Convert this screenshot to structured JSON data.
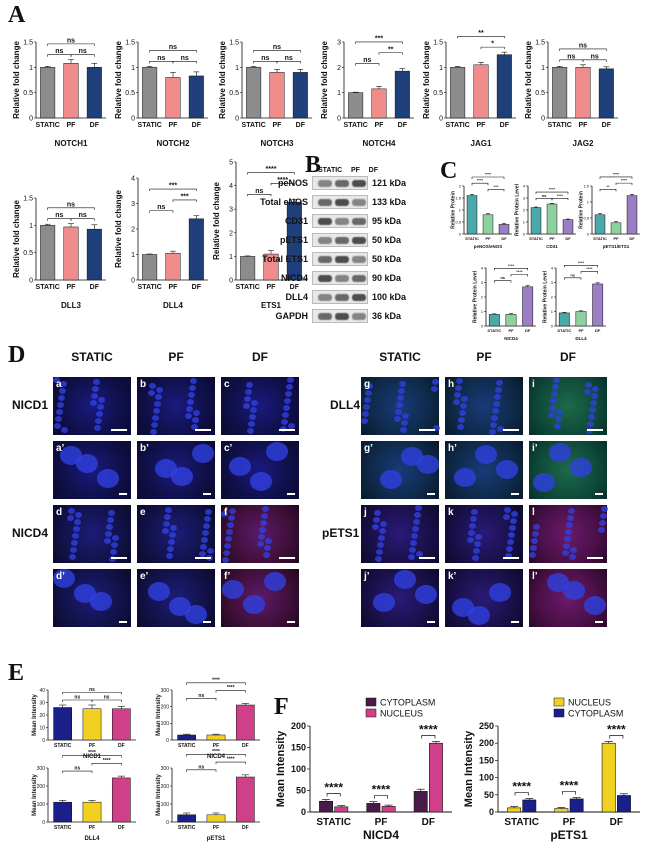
{
  "panels": {
    "A": "A",
    "B": "B",
    "C": "C",
    "D": "D",
    "E": "E",
    "F": "F"
  },
  "colors": {
    "static": "#8c8c8c",
    "pf": "#f08c8c",
    "df": "#1f3f7a",
    "purple": "#9b7fc4",
    "green": "#8fd19e",
    "teal": "#4aa8a8",
    "navy": "#1b1f8a",
    "gold": "#f0d020",
    "magenta": "#d0408a",
    "dark_purple": "#4a1a4a"
  },
  "chart_data": [
    {
      "id": "notch1",
      "type": "bar",
      "categories": [
        "STATIC",
        "PF",
        "DF"
      ],
      "values": [
        1.0,
        1.08,
        1.0
      ],
      "errors": [
        0.02,
        0.07,
        0.08
      ],
      "xlabel": "NOTCH1",
      "ylabel": "Relative fold change",
      "ylim": [
        0,
        1.5
      ],
      "yticks": [
        0,
        0.5,
        1,
        1.5
      ],
      "sig": [
        {
          "a": 0,
          "b": 1,
          "label": "ns",
          "level": 0
        },
        {
          "a": 1,
          "b": 2,
          "label": "ns",
          "level": 0
        },
        {
          "a": 0,
          "b": 2,
          "label": "ns",
          "level": 1
        }
      ]
    },
    {
      "id": "notch2",
      "type": "bar",
      "categories": [
        "STATIC",
        "PF",
        "DF"
      ],
      "values": [
        1.0,
        0.8,
        0.83
      ],
      "errors": [
        0.02,
        0.1,
        0.08
      ],
      "xlabel": "NOTCH2",
      "ylabel": "Relative fold change",
      "ylim": [
        0,
        1.5
      ],
      "yticks": [
        0,
        0.5,
        1,
        1.5
      ],
      "sig": [
        {
          "a": 0,
          "b": 1,
          "label": "ns",
          "level": 0
        },
        {
          "a": 1,
          "b": 2,
          "label": "ns",
          "level": 0
        },
        {
          "a": 0,
          "b": 2,
          "label": "ns",
          "level": 1
        }
      ]
    },
    {
      "id": "notch3",
      "type": "bar",
      "categories": [
        "STATIC",
        "PF",
        "DF"
      ],
      "values": [
        1.0,
        0.9,
        0.9
      ],
      "errors": [
        0.02,
        0.06,
        0.06
      ],
      "xlabel": "NOTCH3",
      "ylabel": "Relative fold change",
      "ylim": [
        0,
        1.5
      ],
      "yticks": [
        0,
        0.5,
        1,
        1.5
      ],
      "sig": [
        {
          "a": 0,
          "b": 1,
          "label": "ns",
          "level": 0
        },
        {
          "a": 1,
          "b": 2,
          "label": "ns",
          "level": 0
        },
        {
          "a": 0,
          "b": 2,
          "label": "ns",
          "level": 1
        }
      ]
    },
    {
      "id": "notch4",
      "type": "bar",
      "categories": [
        "STATIC",
        "PF",
        "DF"
      ],
      "values": [
        1.0,
        1.15,
        1.85
      ],
      "errors": [
        0.02,
        0.1,
        0.1
      ],
      "xlabel": "NOTCH4",
      "ylabel": "Relative fold change",
      "ylim": [
        0,
        3
      ],
      "yticks": [
        0,
        1,
        2,
        3
      ],
      "sig": [
        {
          "a": 0,
          "b": 1,
          "label": "ns",
          "level": 0
        },
        {
          "a": 1,
          "b": 2,
          "label": "**",
          "level": 1
        },
        {
          "a": 0,
          "b": 2,
          "label": "***",
          "level": 2
        }
      ]
    },
    {
      "id": "jag1",
      "type": "bar",
      "categories": [
        "STATIC",
        "PF",
        "DF"
      ],
      "values": [
        1.0,
        1.05,
        1.25
      ],
      "errors": [
        0.02,
        0.05,
        0.05
      ],
      "xlabel": "JAG1",
      "ylabel": "Relative fold change",
      "ylim": [
        0,
        1.5
      ],
      "yticks": [
        0,
        0.5,
        1,
        1.5
      ],
      "sig": [
        {
          "a": 1,
          "b": 2,
          "label": "*",
          "level": 0
        },
        {
          "a": 0,
          "b": 2,
          "label": "**",
          "level": 1
        }
      ]
    },
    {
      "id": "jag2",
      "type": "bar",
      "categories": [
        "STATIC",
        "PF",
        "DF"
      ],
      "values": [
        1.0,
        1.0,
        0.97
      ],
      "errors": [
        0.02,
        0.05,
        0.04
      ],
      "xlabel": "JAG2",
      "ylabel": "Relative fold change",
      "ylim": [
        0,
        1.5
      ],
      "yticks": [
        0,
        0.5,
        1,
        1.5
      ],
      "sig": [
        {
          "a": 0,
          "b": 1,
          "label": "ns",
          "level": 0
        },
        {
          "a": 1,
          "b": 2,
          "label": "ns",
          "level": 0
        },
        {
          "a": 0,
          "b": 2,
          "label": "ns",
          "level": 1
        }
      ]
    },
    {
      "id": "dll3",
      "type": "bar",
      "categories": [
        "STATIC",
        "PF",
        "DF"
      ],
      "values": [
        1.0,
        0.97,
        0.93
      ],
      "errors": [
        0.02,
        0.06,
        0.08
      ],
      "xlabel": "DLL3",
      "ylabel": "Relative fold change",
      "ylim": [
        0,
        1.5
      ],
      "yticks": [
        0,
        0.5,
        1,
        1.5
      ],
      "sig": [
        {
          "a": 0,
          "b": 1,
          "label": "ns",
          "level": 0
        },
        {
          "a": 1,
          "b": 2,
          "label": "ns",
          "level": 0
        },
        {
          "a": 0,
          "b": 2,
          "label": "ns",
          "level": 1
        }
      ]
    },
    {
      "id": "dll4",
      "type": "bar",
      "categories": [
        "STATIC",
        "PF",
        "DF"
      ],
      "values": [
        1.0,
        1.05,
        2.4
      ],
      "errors": [
        0.02,
        0.08,
        0.12
      ],
      "xlabel": "DLL4",
      "ylabel": "Relative fold change",
      "ylim": [
        0,
        4
      ],
      "yticks": [
        0,
        1,
        2,
        3,
        4
      ],
      "sig": [
        {
          "a": 0,
          "b": 1,
          "label": "ns",
          "level": 0
        },
        {
          "a": 1,
          "b": 2,
          "label": "***",
          "level": 1
        },
        {
          "a": 0,
          "b": 2,
          "label": "***",
          "level": 2
        }
      ]
    },
    {
      "id": "ets1",
      "type": "bar",
      "categories": [
        "STATIC",
        "PF",
        "DF"
      ],
      "values": [
        1.0,
        1.1,
        3.3
      ],
      "errors": [
        0.02,
        0.15,
        0.12
      ],
      "xlabel": "ETS1",
      "ylabel": "Relative fold change",
      "ylim": [
        0,
        5
      ],
      "yticks": [
        0,
        1,
        2,
        3,
        4,
        5
      ],
      "sig": [
        {
          "a": 0,
          "b": 1,
          "label": "ns",
          "level": 0
        },
        {
          "a": 1,
          "b": 2,
          "label": "****",
          "level": 1
        },
        {
          "a": 0,
          "b": 2,
          "label": "****",
          "level": 2
        }
      ]
    },
    {
      "id": "c_peNOS",
      "type": "bar",
      "categories": [
        "STATIC",
        "PF",
        "DF"
      ],
      "values": [
        1.6,
        0.8,
        0.4
      ],
      "errors": [
        0.05,
        0.05,
        0.04
      ],
      "xlabel": "peNOS/eNOS",
      "ylabel": "Relative Protein",
      "ylim": [
        0,
        2
      ],
      "yticks": [
        0,
        0.5,
        1,
        1.5,
        2
      ],
      "sig": [
        {
          "a": 1,
          "b": 2,
          "label": "***",
          "level": 0
        },
        {
          "a": 0,
          "b": 1,
          "label": "****",
          "level": 1
        },
        {
          "a": 0,
          "b": 2,
          "label": "****",
          "level": 2
        }
      ]
    },
    {
      "id": "c_cd31",
      "type": "bar",
      "categories": [
        "STATIC",
        "PF",
        "DF"
      ],
      "values": [
        2.2,
        2.5,
        1.2
      ],
      "errors": [
        0.05,
        0.06,
        0.05
      ],
      "xlabel": "CD31",
      "ylabel": "Relative Protein Level",
      "ylim": [
        0,
        4
      ],
      "yticks": [
        0,
        1,
        2,
        3,
        4
      ],
      "sig": [
        {
          "a": 0,
          "b": 1,
          "label": "ns",
          "level": 0
        },
        {
          "a": 1,
          "b": 2,
          "label": "****",
          "level": 0
        },
        {
          "a": 0,
          "b": 2,
          "label": "****",
          "level": 1
        }
      ]
    },
    {
      "id": "c_pets1",
      "type": "bar",
      "categories": [
        "STATIC",
        "PF",
        "DF"
      ],
      "values": [
        0.6,
        0.35,
        1.2
      ],
      "errors": [
        0.04,
        0.04,
        0.04
      ],
      "xlabel": "pETS1/ETS1",
      "ylabel": "Relative Protein",
      "ylim": [
        0,
        1.5
      ],
      "yticks": [
        0,
        0.5,
        1,
        1.5
      ],
      "sig": [
        {
          "a": 0,
          "b": 1,
          "label": "**",
          "level": 0
        },
        {
          "a": 1,
          "b": 2,
          "label": "****",
          "level": 1
        },
        {
          "a": 0,
          "b": 2,
          "label": "****",
          "level": 2
        }
      ]
    },
    {
      "id": "c_nicd4",
      "type": "bar",
      "categories": [
        "STATIC",
        "PF",
        "DF"
      ],
      "values": [
        0.8,
        0.8,
        2.7
      ],
      "errors": [
        0.04,
        0.05,
        0.08
      ],
      "xlabel": "NICD4",
      "ylabel": "Relative Protein Level",
      "ylim": [
        0,
        4
      ],
      "yticks": [
        0,
        1,
        2,
        3,
        4
      ],
      "sig": [
        {
          "a": 0,
          "b": 1,
          "label": "ns",
          "level": 0
        },
        {
          "a": 1,
          "b": 2,
          "label": "****",
          "level": 1
        },
        {
          "a": 0,
          "b": 2,
          "label": "****",
          "level": 2
        }
      ]
    },
    {
      "id": "c_dll4",
      "type": "bar",
      "categories": [
        "STATIC",
        "PF",
        "DF"
      ],
      "values": [
        0.9,
        1.0,
        2.9
      ],
      "errors": [
        0.04,
        0.05,
        0.08
      ],
      "xlabel": "DLL4",
      "ylabel": "Relative Protein Level",
      "ylim": [
        0,
        4
      ],
      "yticks": [
        0,
        1,
        2,
        3,
        4
      ],
      "sig": [
        {
          "a": 0,
          "b": 1,
          "label": "ns",
          "level": 0
        },
        {
          "a": 1,
          "b": 2,
          "label": "****",
          "level": 1
        },
        {
          "a": 0,
          "b": 2,
          "label": "****",
          "level": 2
        }
      ]
    },
    {
      "id": "e_nicd1",
      "type": "bar",
      "categories": [
        "STATIC",
        "PF",
        "DF"
      ],
      "values": [
        26,
        25,
        25
      ],
      "errors": [
        2,
        3,
        2
      ],
      "xlabel": "NICD1",
      "ylabel": "Mean Intensity",
      "ylim": [
        0,
        40
      ],
      "yticks": [
        0,
        10,
        20,
        30,
        40
      ],
      "sig": [
        {
          "a": 0,
          "b": 1,
          "label": "ns",
          "level": 0
        },
        {
          "a": 1,
          "b": 2,
          "label": "ns",
          "level": 0
        },
        {
          "a": 0,
          "b": 2,
          "label": "ns",
          "level": 1
        }
      ]
    },
    {
      "id": "e_nicd4",
      "type": "bar",
      "categories": [
        "STATIC",
        "PF",
        "DF"
      ],
      "values": [
        30,
        30,
        210
      ],
      "errors": [
        5,
        5,
        10
      ],
      "xlabel": "NICD4",
      "ylabel": "Mean Intensity",
      "ylim": [
        0,
        300
      ],
      "yticks": [
        0,
        100,
        200,
        300
      ],
      "sig": [
        {
          "a": 0,
          "b": 1,
          "label": "ns",
          "level": 0
        },
        {
          "a": 1,
          "b": 2,
          "label": "****",
          "level": 1
        },
        {
          "a": 0,
          "b": 2,
          "label": "****",
          "level": 2
        }
      ]
    },
    {
      "id": "e_dll4",
      "type": "bar",
      "categories": [
        "STATIC",
        "PF",
        "DF"
      ],
      "values": [
        110,
        110,
        245
      ],
      "errors": [
        10,
        10,
        10
      ],
      "xlabel": "DLL4",
      "ylabel": "Mean Intensity",
      "ylim": [
        0,
        300
      ],
      "yticks": [
        0,
        100,
        200,
        300
      ],
      "sig": [
        {
          "a": 0,
          "b": 1,
          "label": "ns",
          "level": 0
        },
        {
          "a": 1,
          "b": 2,
          "label": "****",
          "level": 1
        },
        {
          "a": 0,
          "b": 2,
          "label": "****",
          "level": 2
        }
      ]
    },
    {
      "id": "e_pets1",
      "type": "bar",
      "categories": [
        "STATIC",
        "PF",
        "DF"
      ],
      "values": [
        40,
        40,
        250
      ],
      "errors": [
        10,
        10,
        12
      ],
      "xlabel": "pETS1",
      "ylabel": "Mean Intensity",
      "ylim": [
        0,
        300
      ],
      "yticks": [
        0,
        100,
        200,
        300
      ],
      "sig": [
        {
          "a": 0,
          "b": 1,
          "label": "ns",
          "level": 0
        },
        {
          "a": 1,
          "b": 2,
          "label": "****",
          "level": 1
        },
        {
          "a": 0,
          "b": 2,
          "label": "****",
          "level": 2
        }
      ]
    },
    {
      "id": "f_nicd4",
      "type": "bar",
      "categories": [
        "STATIC",
        "PF",
        "DF"
      ],
      "series": [
        {
          "name": "CYTOPLASM",
          "values": [
            25,
            20,
            48
          ],
          "errors": [
            4,
            4,
            5
          ]
        },
        {
          "name": "NUCLEUS",
          "values": [
            12,
            13,
            160
          ],
          "errors": [
            3,
            3,
            4
          ]
        }
      ],
      "xlabel": "NICD4",
      "ylabel": "Mean Intensity",
      "ylim": [
        0,
        200
      ],
      "yticks": [
        0,
        50,
        100,
        150,
        200
      ],
      "sig_labels": [
        "****",
        "****",
        "****"
      ],
      "legend": "top"
    },
    {
      "id": "f_pets1",
      "type": "bar",
      "categories": [
        "STATIC",
        "PF",
        "DF"
      ],
      "series": [
        {
          "name": "NUCLEUS",
          "values": [
            12,
            10,
            200
          ],
          "errors": [
            4,
            3,
            5
          ]
        },
        {
          "name": "CYTOPLASM",
          "values": [
            35,
            38,
            48
          ],
          "errors": [
            4,
            4,
            5
          ]
        }
      ],
      "xlabel": "pETS1",
      "ylabel": "Mean Intensity",
      "ylim": [
        0,
        250
      ],
      "yticks": [
        0,
        50,
        100,
        150,
        200,
        250
      ],
      "sig_labels": [
        "****",
        "****",
        "****"
      ],
      "legend": "top"
    }
  ],
  "western": {
    "header": [
      "STATIC",
      "PF",
      "DF"
    ],
    "rows": [
      {
        "label": "peNOS",
        "kda": "121 kDa"
      },
      {
        "label": "Total eNOS",
        "kda": "133 kDa"
      },
      {
        "label": "CD31",
        "kda": "95 kDa"
      },
      {
        "label": "pETS1",
        "kda": "50 kDa"
      },
      {
        "label": "Total ETS1",
        "kda": "50 kDa"
      },
      {
        "label": "NICD4",
        "kda": "90 kDa"
      },
      {
        "label": "DLL4",
        "kda": "100 kDa"
      },
      {
        "label": "GAPDH",
        "kda": "36 kDa"
      }
    ]
  },
  "micro": {
    "cols": [
      "STATIC",
      "PF",
      "DF",
      "STATIC",
      "PF",
      "DF"
    ],
    "rows_left": [
      "NICD1",
      "NICD4"
    ],
    "rows_right": [
      "DLL4",
      "pETS1"
    ],
    "labels": [
      [
        "a",
        "b",
        "c",
        "g",
        "h",
        "i"
      ],
      [
        "a’",
        "b’",
        "c’",
        "g’",
        "h’",
        "i’"
      ],
      [
        "d",
        "e",
        "f",
        "j",
        "k",
        "l"
      ],
      [
        "d’",
        "e’",
        "f’",
        "j’",
        "k’",
        "l’"
      ]
    ]
  }
}
